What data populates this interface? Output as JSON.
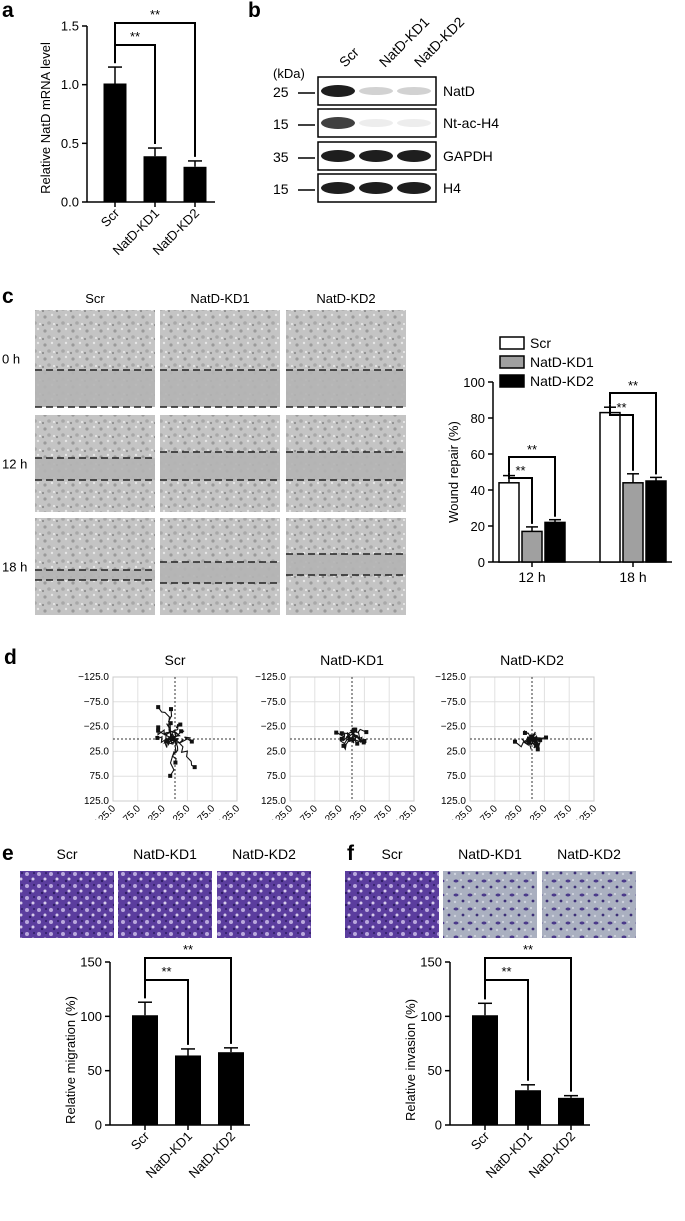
{
  "panels": {
    "a": "a",
    "b": "b",
    "c": "c",
    "d": "d",
    "e": "e",
    "f": "f"
  },
  "sig": "**",
  "chart_data": [
    {
      "id": "a",
      "type": "bar",
      "categories": [
        "Scr",
        "NatD-KD1",
        "NatD-KD2"
      ],
      "values": [
        1.01,
        0.39,
        0.3
      ],
      "errors": [
        0.14,
        0.07,
        0.05
      ],
      "ylabel": "Relative NatD mRNA level",
      "ylim": [
        0,
        1.5
      ],
      "yticks": [
        "0.0",
        "0.5",
        "1.0",
        "1.5"
      ],
      "ytick_values": [
        0,
        0.5,
        1.0,
        1.5
      ],
      "color": "#000000"
    },
    {
      "id": "c",
      "type": "bar",
      "categories": [
        "12 h",
        "18 h"
      ],
      "series": [
        {
          "name": "Scr",
          "values": [
            44,
            83
          ],
          "errors": [
            4,
            3
          ],
          "color": "#ffffff"
        },
        {
          "name": "NatD-KD1",
          "values": [
            17,
            44
          ],
          "errors": [
            2.5,
            5
          ],
          "color": "#a0a0a0"
        },
        {
          "name": "NatD-KD2",
          "values": [
            22,
            45
          ],
          "errors": [
            1.5,
            2
          ],
          "color": "#000000"
        }
      ],
      "ylabel": "Wound repair (%)",
      "ylim": [
        0,
        100
      ],
      "yticks": [
        "0",
        "20",
        "40",
        "60",
        "80",
        "100"
      ],
      "ytick_values": [
        0,
        20,
        40,
        60,
        80,
        100
      ],
      "legend": "top-left"
    },
    {
      "id": "e",
      "type": "bar",
      "categories": [
        "Scr",
        "NatD-KD1",
        "NatD-KD2"
      ],
      "values": [
        101,
        64,
        67
      ],
      "errors": [
        12,
        6,
        4
      ],
      "ylabel": "Relative migration (%)",
      "ylim": [
        0,
        150
      ],
      "yticks": [
        "0",
        "50",
        "100",
        "150"
      ],
      "ytick_values": [
        0,
        50,
        100,
        150
      ],
      "color": "#000000"
    },
    {
      "id": "f",
      "type": "bar",
      "categories": [
        "Scr",
        "NatD-KD1",
        "NatD-KD2"
      ],
      "values": [
        101,
        32,
        25
      ],
      "errors": [
        11,
        5,
        2
      ],
      "ylabel": "Relative invasion (%)",
      "ylim": [
        0,
        150
      ],
      "yticks": [
        "0",
        "50",
        "100",
        "150"
      ],
      "ytick_values": [
        0,
        50,
        100,
        150
      ],
      "color": "#000000"
    }
  ],
  "western_blot": {
    "unit_label": "(kDa)",
    "lanes": [
      "Scr",
      "NatD-KD1",
      "NatD-KD2"
    ],
    "rows": [
      {
        "marker": "25",
        "label": "NatD",
        "intensity": [
          1.0,
          0.2,
          0.2
        ]
      },
      {
        "marker": "15",
        "label": "Nt-ac-H4",
        "intensity": [
          0.85,
          0.08,
          0.08
        ]
      },
      {
        "marker": "35",
        "label": "GAPDH",
        "intensity": [
          1.0,
          1.0,
          1.0
        ]
      },
      {
        "marker": "15",
        "label": "H4",
        "intensity": [
          1.0,
          1.0,
          1.0
        ]
      }
    ]
  },
  "wound_images": {
    "columns": [
      "Scr",
      "NatD-KD1",
      "NatD-KD2"
    ],
    "rows": [
      "0 h",
      "12 h",
      "18 h"
    ]
  },
  "tracking": {
    "titles": [
      "Scr",
      "NatD-KD1",
      "NatD-KD2"
    ],
    "yticks": [
      "−125.0",
      "−75.0",
      "−25.0",
      "25.0",
      "75.0",
      "125.0"
    ],
    "xticks": [
      "−125.0",
      "−75.0",
      "−25.0",
      "25.0",
      "75.0",
      "125.0"
    ],
    "axis_range": [
      -125,
      125
    ]
  },
  "stain_images": {
    "e": [
      "Scr",
      "NatD-KD1",
      "NatD-KD2"
    ],
    "f": [
      "Scr",
      "NatD-KD1",
      "NatD-KD2"
    ]
  }
}
